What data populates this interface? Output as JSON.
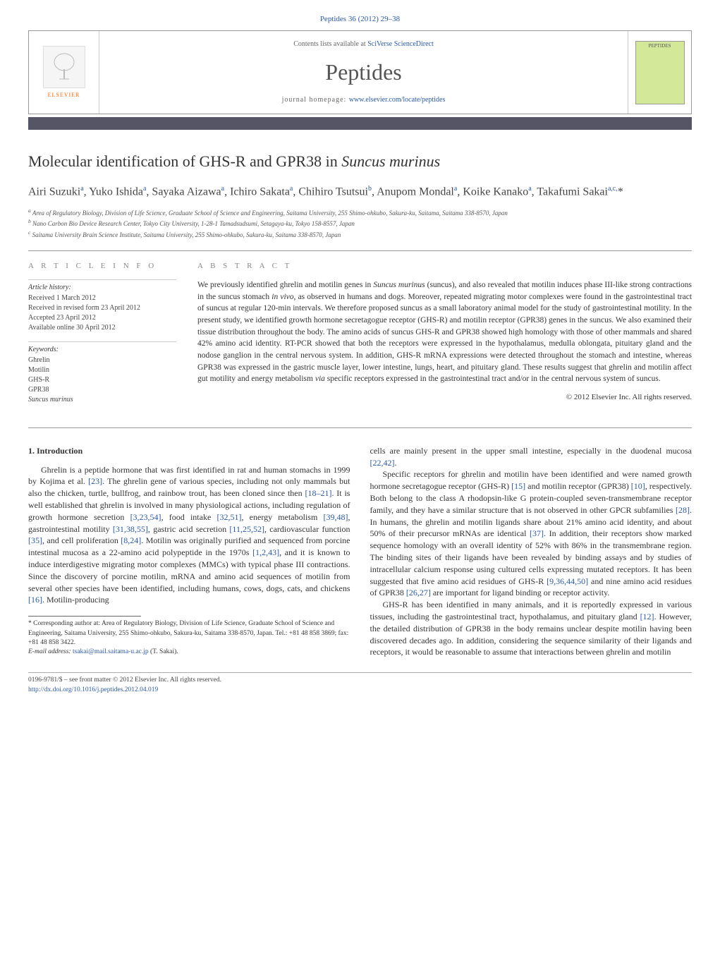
{
  "journal_ref": "Peptides 36 (2012) 29–38",
  "header": {
    "contents_prefix": "Contents lists available at ",
    "contents_link": "SciVerse ScienceDirect",
    "journal_title": "Peptides",
    "homepage_prefix": "journal homepage: ",
    "homepage_link": "www.elsevier.com/locate/peptides",
    "elsevier_label": "ELSEVIER",
    "cover_text": "PEPTIDES"
  },
  "title_pre": "Molecular identification of GHS-R and GPR38 in ",
  "title_em": "Suncus murinus",
  "authors": "Airi Suzuki<sup>a</sup>, Yuko Ishida<sup>a</sup>, Sayaka Aizawa<sup>a</sup>, Ichiro Sakata<sup>a</sup>, Chihiro Tsutsui<sup>b</sup>, Anupom Mondal<sup>a</sup>, Koike Kanako<sup>a</sup>, Takafumi Sakai<sup>a,c,</sup>*",
  "affiliations": [
    "<sup>a</sup> Area of Regulatory Biology, Division of Life Science, Graduate School of Science and Engineering, Saitama University, 255 Shimo-ohkubo, Sakura-ku, Saitama, Saitama 338-8570, Japan",
    "<sup>b</sup> Nano Carbon Bio Device Research Center, Tokyo City University, 1-28-1 Tamadsudsumi, Setagaya-ku, Tokyo 158-8557, Japan",
    "<sup>c</sup> Saitama University Brain Science Institute, Saitama University, 255 Shimo-ohkubo, Sakura-ku, Saitama 338-8570, Japan"
  ],
  "article_info": {
    "heading": "a r t i c l e   i n f o",
    "history_head": "Article history:",
    "history": [
      "Received 1 March 2012",
      "Received in revised form 23 April 2012",
      "Accepted 23 April 2012",
      "Available online 30 April 2012"
    ],
    "keywords_head": "Keywords:",
    "keywords": [
      "Ghrelin",
      "Motilin",
      "GHS-R",
      "GPR38",
      "Suncus murinus"
    ]
  },
  "abstract": {
    "heading": "a b s t r a c t",
    "text": "We previously identified ghrelin and motilin genes in <em>Suncus murinus</em> (suncus), and also revealed that motilin induces phase III-like strong contractions in the suncus stomach <em>in vivo</em>, as observed in humans and dogs. Moreover, repeated migrating motor complexes were found in the gastrointestinal tract of suncus at regular 120-min intervals. We therefore proposed suncus as a small laboratory animal model for the study of gastrointestinal motility. In the present study, we identified growth hormone secretagogue receptor (GHS-R) and motilin receptor (GPR38) genes in the suncus. We also examined their tissue distribution throughout the body. The amino acids of suncus GHS-R and GPR38 showed high homology with those of other mammals and shared 42% amino acid identity. RT-PCR showed that both the receptors were expressed in the hypothalamus, medulla oblongata, pituitary gland and the nodose ganglion in the central nervous system. In addition, GHS-R mRNA expressions were detected throughout the stomach and intestine, whereas GPR38 was expressed in the gastric muscle layer, lower intestine, lungs, heart, and pituitary gland. These results suggest that ghrelin and motilin affect gut motility and energy metabolism <em>via</em> specific receptors expressed in the gastrointestinal tract and/or in the central nervous system of suncus.",
    "copyright": "© 2012 Elsevier Inc. All rights reserved."
  },
  "section1_heading": "1. Introduction",
  "body_p1": "Ghrelin is a peptide hormone that was first identified in rat and human stomachs in 1999 by Kojima et al. <span class=\"ref\">[23]</span>. The ghrelin gene of various species, including not only mammals but also the chicken, turtle, bullfrog, and rainbow trout, has been cloned since then <span class=\"ref\">[18–21]</span>. It is well established that ghrelin is involved in many physiological actions, including regulation of growth hormone secretion <span class=\"ref\">[3,23,54]</span>, food intake <span class=\"ref\">[32,51]</span>, energy metabolism <span class=\"ref\">[39,48]</span>, gastrointestinal motility <span class=\"ref\">[31,38,55]</span>, gastric acid secretion <span class=\"ref\">[11,25,52]</span>, cardiovascular function <span class=\"ref\">[35]</span>, and cell proliferation <span class=\"ref\">[8,24]</span>. Motilin was originally purified and sequenced from porcine intestinal mucosa as a 22-amino acid polypeptide in the 1970s <span class=\"ref\">[1,2,43]</span>, and it is known to induce interdigestive migrating motor complexes (MMCs) with typical phase III contractions. Since the discovery of porcine motilin, mRNA and amino acid sequences of motilin from several other species have been identified, including humans, cows, dogs, cats, and chickens <span class=\"ref\">[16]</span>. Motilin-producing",
  "body_p2": "cells are mainly present in the upper small intestine, especially in the duodenal mucosa <span class=\"ref\">[22,42]</span>.",
  "body_p3": "Specific receptors for ghrelin and motilin have been identified and were named growth hormone secretagogue receptor (GHS-R) <span class=\"ref\">[15]</span> and motilin receptor (GPR38) <span class=\"ref\">[10]</span>, respectively. Both belong to the class A rhodopsin-like G protein-coupled seven-transmembrane receptor family, and they have a similar structure that is not observed in other GPCR subfamilies <span class=\"ref\">[28]</span>. In humans, the ghrelin and motilin ligands share about 21% amino acid identity, and about 50% of their precursor mRNAs are identical <span class=\"ref\">[37]</span>. In addition, their receptors show marked sequence homology with an overall identity of 52% with 86% in the transmembrane region. The binding sites of their ligands have been revealed by binding assays and by studies of intracellular calcium response using cultured cells expressing mutated receptors. It has been suggested that five amino acid residues of GHS-R <span class=\"ref\">[9,36,44,50]</span> and nine amino acid residues of GPR38 <span class=\"ref\">[26,27]</span> are important for ligand binding or receptor activity.",
  "body_p4": "GHS-R has been identified in many animals, and it is reportedly expressed in various tissues, including the gastrointestinal tract, hypothalamus, and pituitary gland <span class=\"ref\">[12]</span>. However, the detailed distribution of GPR38 in the body remains unclear despite motilin having been discovered decades ago. In addition, considering the sequence similarity of their ligands and receptors, it would be reasonable to assume that interactions between ghrelin and motilin",
  "footnote": {
    "corr": "* Corresponding author at: Area of Regulatory Biology, Division of Life Science, Graduate School of Science and Engineering, Saitama University, 255 Shimo-ohkubo, Sakura-ku, Saitama 338-8570, Japan. Tel.: +81 48 858 3869; fax: +81 48 858 3422.",
    "email_label": "E-mail address:",
    "email": "tsakai@mail.saitama-u.ac.jp",
    "email_suffix": " (T. Sakai)."
  },
  "footer": {
    "left1": "0196-9781/$ – see front matter © 2012 Elsevier Inc. All rights reserved.",
    "left2": "http://dx.doi.org/10.1016/j.peptides.2012.04.019"
  }
}
